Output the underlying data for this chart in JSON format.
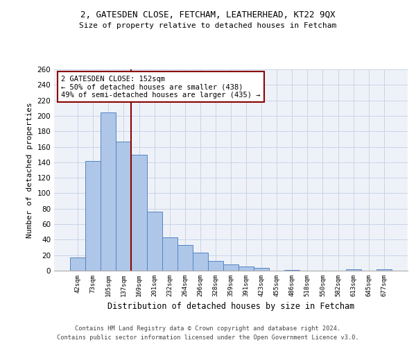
{
  "title1": "2, GATESDEN CLOSE, FETCHAM, LEATHERHEAD, KT22 9QX",
  "title2": "Size of property relative to detached houses in Fetcham",
  "xlabel": "Distribution of detached houses by size in Fetcham",
  "ylabel": "Number of detached properties",
  "bar_labels": [
    "42sqm",
    "73sqm",
    "105sqm",
    "137sqm",
    "169sqm",
    "201sqm",
    "232sqm",
    "264sqm",
    "296sqm",
    "328sqm",
    "359sqm",
    "391sqm",
    "423sqm",
    "455sqm",
    "486sqm",
    "518sqm",
    "550sqm",
    "582sqm",
    "613sqm",
    "645sqm",
    "677sqm"
  ],
  "bar_values": [
    17,
    142,
    204,
    167,
    150,
    76,
    43,
    33,
    23,
    13,
    8,
    5,
    4,
    0,
    1,
    0,
    0,
    0,
    2,
    0,
    2
  ],
  "bar_color": "#aec6e8",
  "bar_edge_color": "#5585c5",
  "vline_x_idx": 3,
  "vline_color": "#8b0000",
  "annotation_text": "2 GATESDEN CLOSE: 152sqm\n← 50% of detached houses are smaller (438)\n49% of semi-detached houses are larger (435) →",
  "annotation_box_color": "white",
  "annotation_box_edge_color": "#8b0000",
  "ylim": [
    0,
    260
  ],
  "yticks": [
    0,
    20,
    40,
    60,
    80,
    100,
    120,
    140,
    160,
    180,
    200,
    220,
    240,
    260
  ],
  "grid_color": "#c8d4e8",
  "footer1": "Contains HM Land Registry data © Crown copyright and database right 2024.",
  "footer2": "Contains public sector information licensed under the Open Government Licence v3.0.",
  "bg_color": "#eef2f8"
}
